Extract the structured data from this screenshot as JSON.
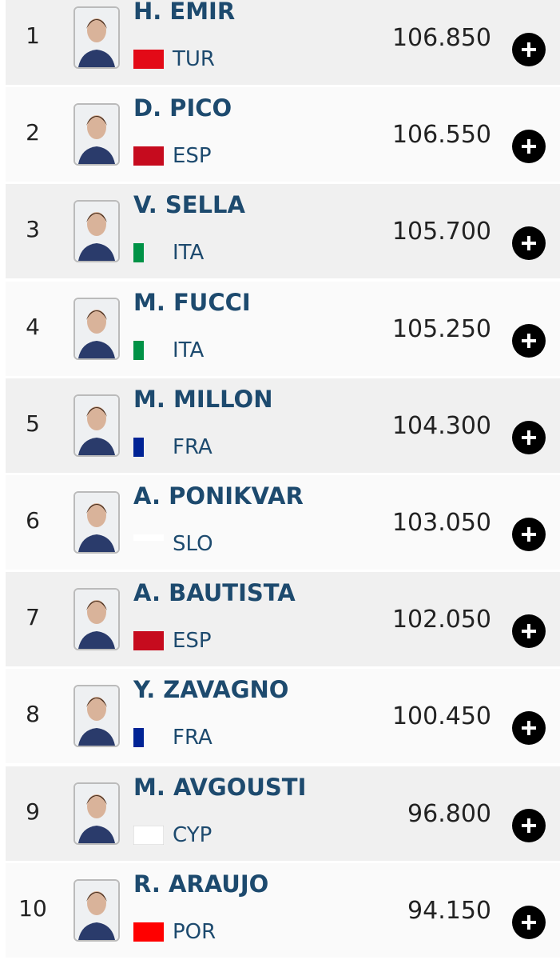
{
  "rows": [
    {
      "rank": 1,
      "name": "H. EMIR",
      "country": "TUR",
      "score": "106.850"
    },
    {
      "rank": 2,
      "name": "D. PICO",
      "country": "ESP",
      "score": "106.550"
    },
    {
      "rank": 3,
      "name": "V. SELLA",
      "country": "ITA",
      "score": "105.700"
    },
    {
      "rank": 4,
      "name": "M. FUCCI",
      "country": "ITA",
      "score": "105.250"
    },
    {
      "rank": 5,
      "name": "M. MILLON",
      "country": "FRA",
      "score": "104.300"
    },
    {
      "rank": 6,
      "name": "A. PONIKVAR",
      "country": "SLO",
      "score": "103.050"
    },
    {
      "rank": 7,
      "name": "A. BAUTISTA",
      "country": "ESP",
      "score": "102.050"
    },
    {
      "rank": 8,
      "name": "Y. ZAVAGNO",
      "country": "FRA",
      "score": "100.450"
    },
    {
      "rank": 9,
      "name": "M. AVGOUSTI",
      "country": "CYP",
      "score": "96.800"
    },
    {
      "rank": 10,
      "name": "R. ARAUJO",
      "country": "POR",
      "score": "94.150"
    }
  ]
}
